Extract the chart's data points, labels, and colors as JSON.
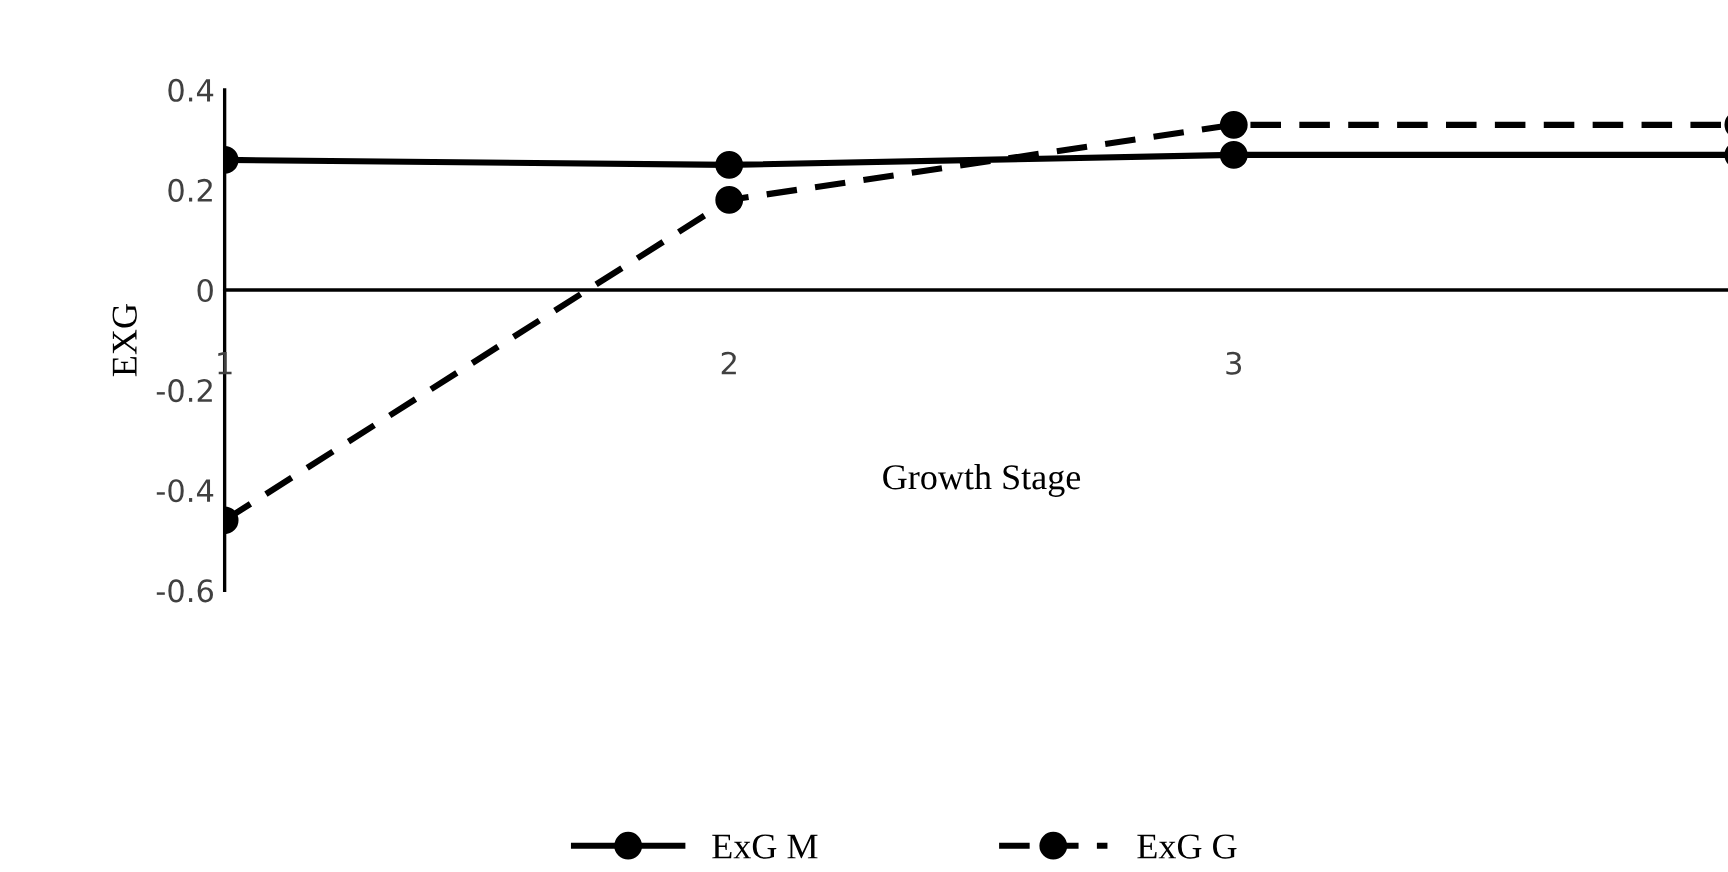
{
  "chart_data": {
    "type": "line",
    "xlabel": "Growth Stage",
    "ylabel": "EXG",
    "categories": [
      "1",
      "2",
      "3",
      null
    ],
    "series": [
      {
        "name": "ExG M",
        "color": "#000000",
        "line_style": "solid",
        "values": [
          0.26,
          0.25,
          0.27,
          0.27
        ]
      },
      {
        "name": "ExG G",
        "color": "#000000",
        "line_style": "dashed",
        "values": [
          -0.46,
          0.18,
          0.33,
          0.33
        ]
      }
    ],
    "ylim": [
      -0.6,
      0.4
    ],
    "yticks": [
      -0.6,
      -0.4,
      -0.2,
      0,
      0.2,
      0.4
    ],
    "marker": "circle",
    "legend": "bottom",
    "grid": false
  }
}
